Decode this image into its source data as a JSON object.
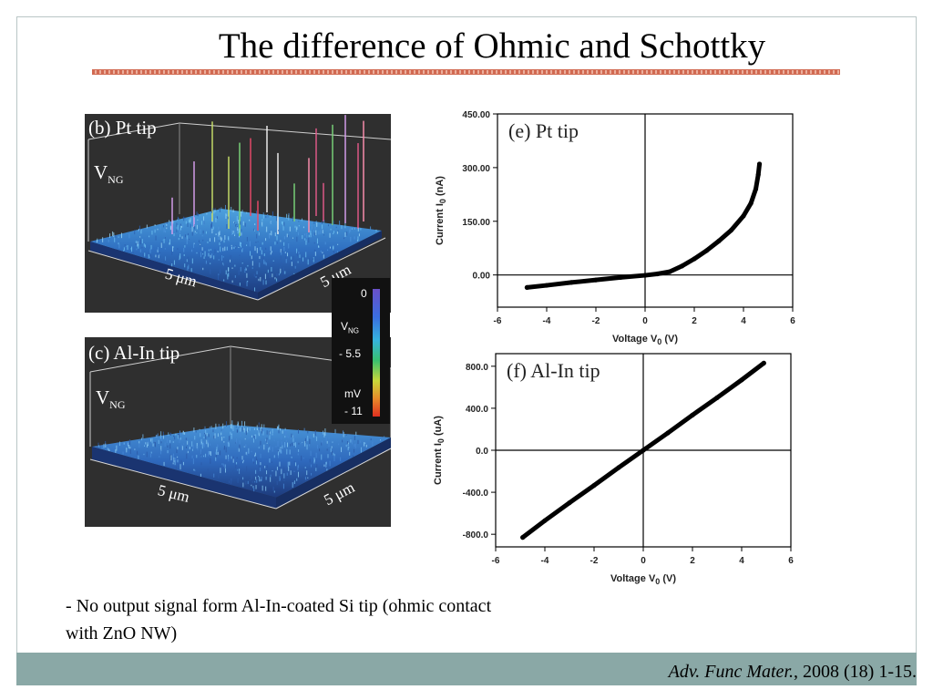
{
  "slide": {
    "title": "The difference of Ohmic and Schottky",
    "caption_line1": "- No output signal form Al-In-coated Si tip (ohmic contact",
    "caption_line2": "with ZnO NW)",
    "citation_journal": "Adv. Func Mater.",
    "citation_rest": ", 2008 (18) 1-15."
  },
  "panels": {
    "b": {
      "label": "(b)  Pt tip",
      "vng": "V",
      "vng_sub": "NG",
      "axis_x": "5 μm",
      "axis_y": "5 μm"
    },
    "c": {
      "label": "(c)  Al-In tip",
      "vng": "V",
      "vng_sub": "NG",
      "axis_x": "5 μm",
      "axis_y": "5 μm"
    }
  },
  "colorbar": {
    "top": "0",
    "v": "V",
    "v_sub": "NG",
    "mid": "- 5.5",
    "unit": "mV",
    "bottom": "- 11",
    "colors": [
      "#6a50c8",
      "#3a6ee0",
      "#35b3e0",
      "#38c070",
      "#c8d83a",
      "#e88a2a",
      "#e03020"
    ]
  },
  "chart_data": [
    {
      "type": "line",
      "title": "(e) Pt tip",
      "xlabel": "Voltage V",
      "xlabel_sub": "0",
      "xlabel_unit": " (V)",
      "ylabel": "Current I",
      "ylabel_sub": "0",
      "ylabel_unit": " (nA)",
      "xlim": [
        -6,
        6
      ],
      "ylim": [
        -90,
        450
      ],
      "x_ticks": [
        -6,
        -4,
        -2,
        0,
        2,
        4,
        6
      ],
      "y_ticks": [
        0,
        150,
        300,
        450
      ],
      "y_tick_labels": [
        "0.00",
        "150.00",
        "300.00",
        "450.00"
      ],
      "grid": false,
      "series": [
        {
          "x": [
            -4.8,
            -4,
            -3,
            -2,
            -1,
            0,
            0.5,
            1,
            1.5,
            2,
            2.5,
            3,
            3.5,
            4,
            4.3,
            4.5,
            4.6,
            4.65
          ],
          "y": [
            -35,
            -29,
            -21,
            -14,
            -7,
            -1,
            3,
            9,
            25,
            45,
            68,
            95,
            125,
            165,
            200,
            240,
            280,
            310
          ]
        }
      ]
    },
    {
      "type": "line",
      "title": "(f) Al-In tip",
      "xlabel": "Voltage V",
      "xlabel_sub": "0",
      "xlabel_unit": " (V)",
      "ylabel": "Current I",
      "ylabel_sub": "0",
      "ylabel_unit": " (uA)",
      "xlim": [
        -6,
        6
      ],
      "ylim": [
        -920,
        920
      ],
      "x_ticks": [
        -6,
        -4,
        -2,
        0,
        2,
        4,
        6
      ],
      "y_ticks": [
        -800,
        -400,
        0,
        400,
        800
      ],
      "y_tick_labels": [
        "-800.0",
        "-400.0",
        "0.0",
        "400.0",
        "800.0"
      ],
      "grid": false,
      "series": [
        {
          "x": [
            -4.9,
            -4,
            -3,
            -2,
            -1,
            0,
            1,
            2,
            3,
            4,
            4.9
          ],
          "y": [
            -830,
            -670,
            -500,
            -335,
            -165,
            0,
            165,
            335,
            500,
            670,
            830
          ]
        }
      ]
    }
  ]
}
